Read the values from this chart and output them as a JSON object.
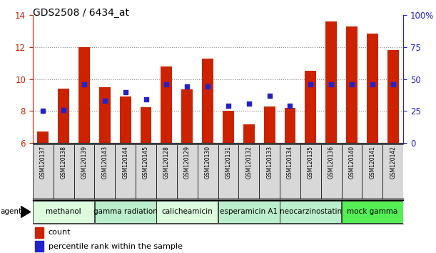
{
  "title": "GDS2508 / 6434_at",
  "samples": [
    "GSM120137",
    "GSM120138",
    "GSM120139",
    "GSM120143",
    "GSM120144",
    "GSM120145",
    "GSM120128",
    "GSM120129",
    "GSM120130",
    "GSM120131",
    "GSM120132",
    "GSM120133",
    "GSM120134",
    "GSM120135",
    "GSM120136",
    "GSM120140",
    "GSM120141",
    "GSM120142"
  ],
  "counts": [
    6.7,
    9.4,
    12.0,
    9.5,
    8.9,
    8.25,
    10.8,
    9.35,
    11.3,
    8.0,
    7.15,
    8.3,
    8.2,
    10.5,
    13.6,
    13.3,
    12.85,
    11.8
  ],
  "pct_raw": [
    25,
    26,
    46,
    33,
    40,
    34,
    46,
    44,
    44,
    29,
    31,
    37,
    29,
    46,
    46,
    46,
    46,
    46
  ],
  "agents": [
    {
      "label": "methanol",
      "start": 0,
      "end": 3,
      "color": "#ddfcdd"
    },
    {
      "label": "gamma radiation",
      "start": 3,
      "end": 6,
      "color": "#bbeecc"
    },
    {
      "label": "calicheamicin",
      "start": 6,
      "end": 9,
      "color": "#ddfcdd"
    },
    {
      "label": "esperamicin A1",
      "start": 9,
      "end": 12,
      "color": "#bbeecc"
    },
    {
      "label": "neocarzinostatin",
      "start": 12,
      "end": 15,
      "color": "#bbeecc"
    },
    {
      "label": "mock gamma",
      "start": 15,
      "end": 18,
      "color": "#55ee55"
    }
  ],
  "ylim_left": [
    6,
    14
  ],
  "ylim_right": [
    0,
    100
  ],
  "yticks_left": [
    6,
    8,
    10,
    12,
    14
  ],
  "yticks_right": [
    0,
    25,
    50,
    75,
    100
  ],
  "ytick_labels_right": [
    "0",
    "25",
    "50",
    "75",
    "100%"
  ],
  "bar_color": "#cc2200",
  "dot_color": "#2222cc",
  "bar_width": 0.55,
  "grid_color": "#888888",
  "tick_color_left": "#cc2200",
  "tick_color_right": "#2222cc",
  "title_fontsize": 10,
  "agent_label_fontsize": 7.5,
  "sample_fontsize": 5.5
}
